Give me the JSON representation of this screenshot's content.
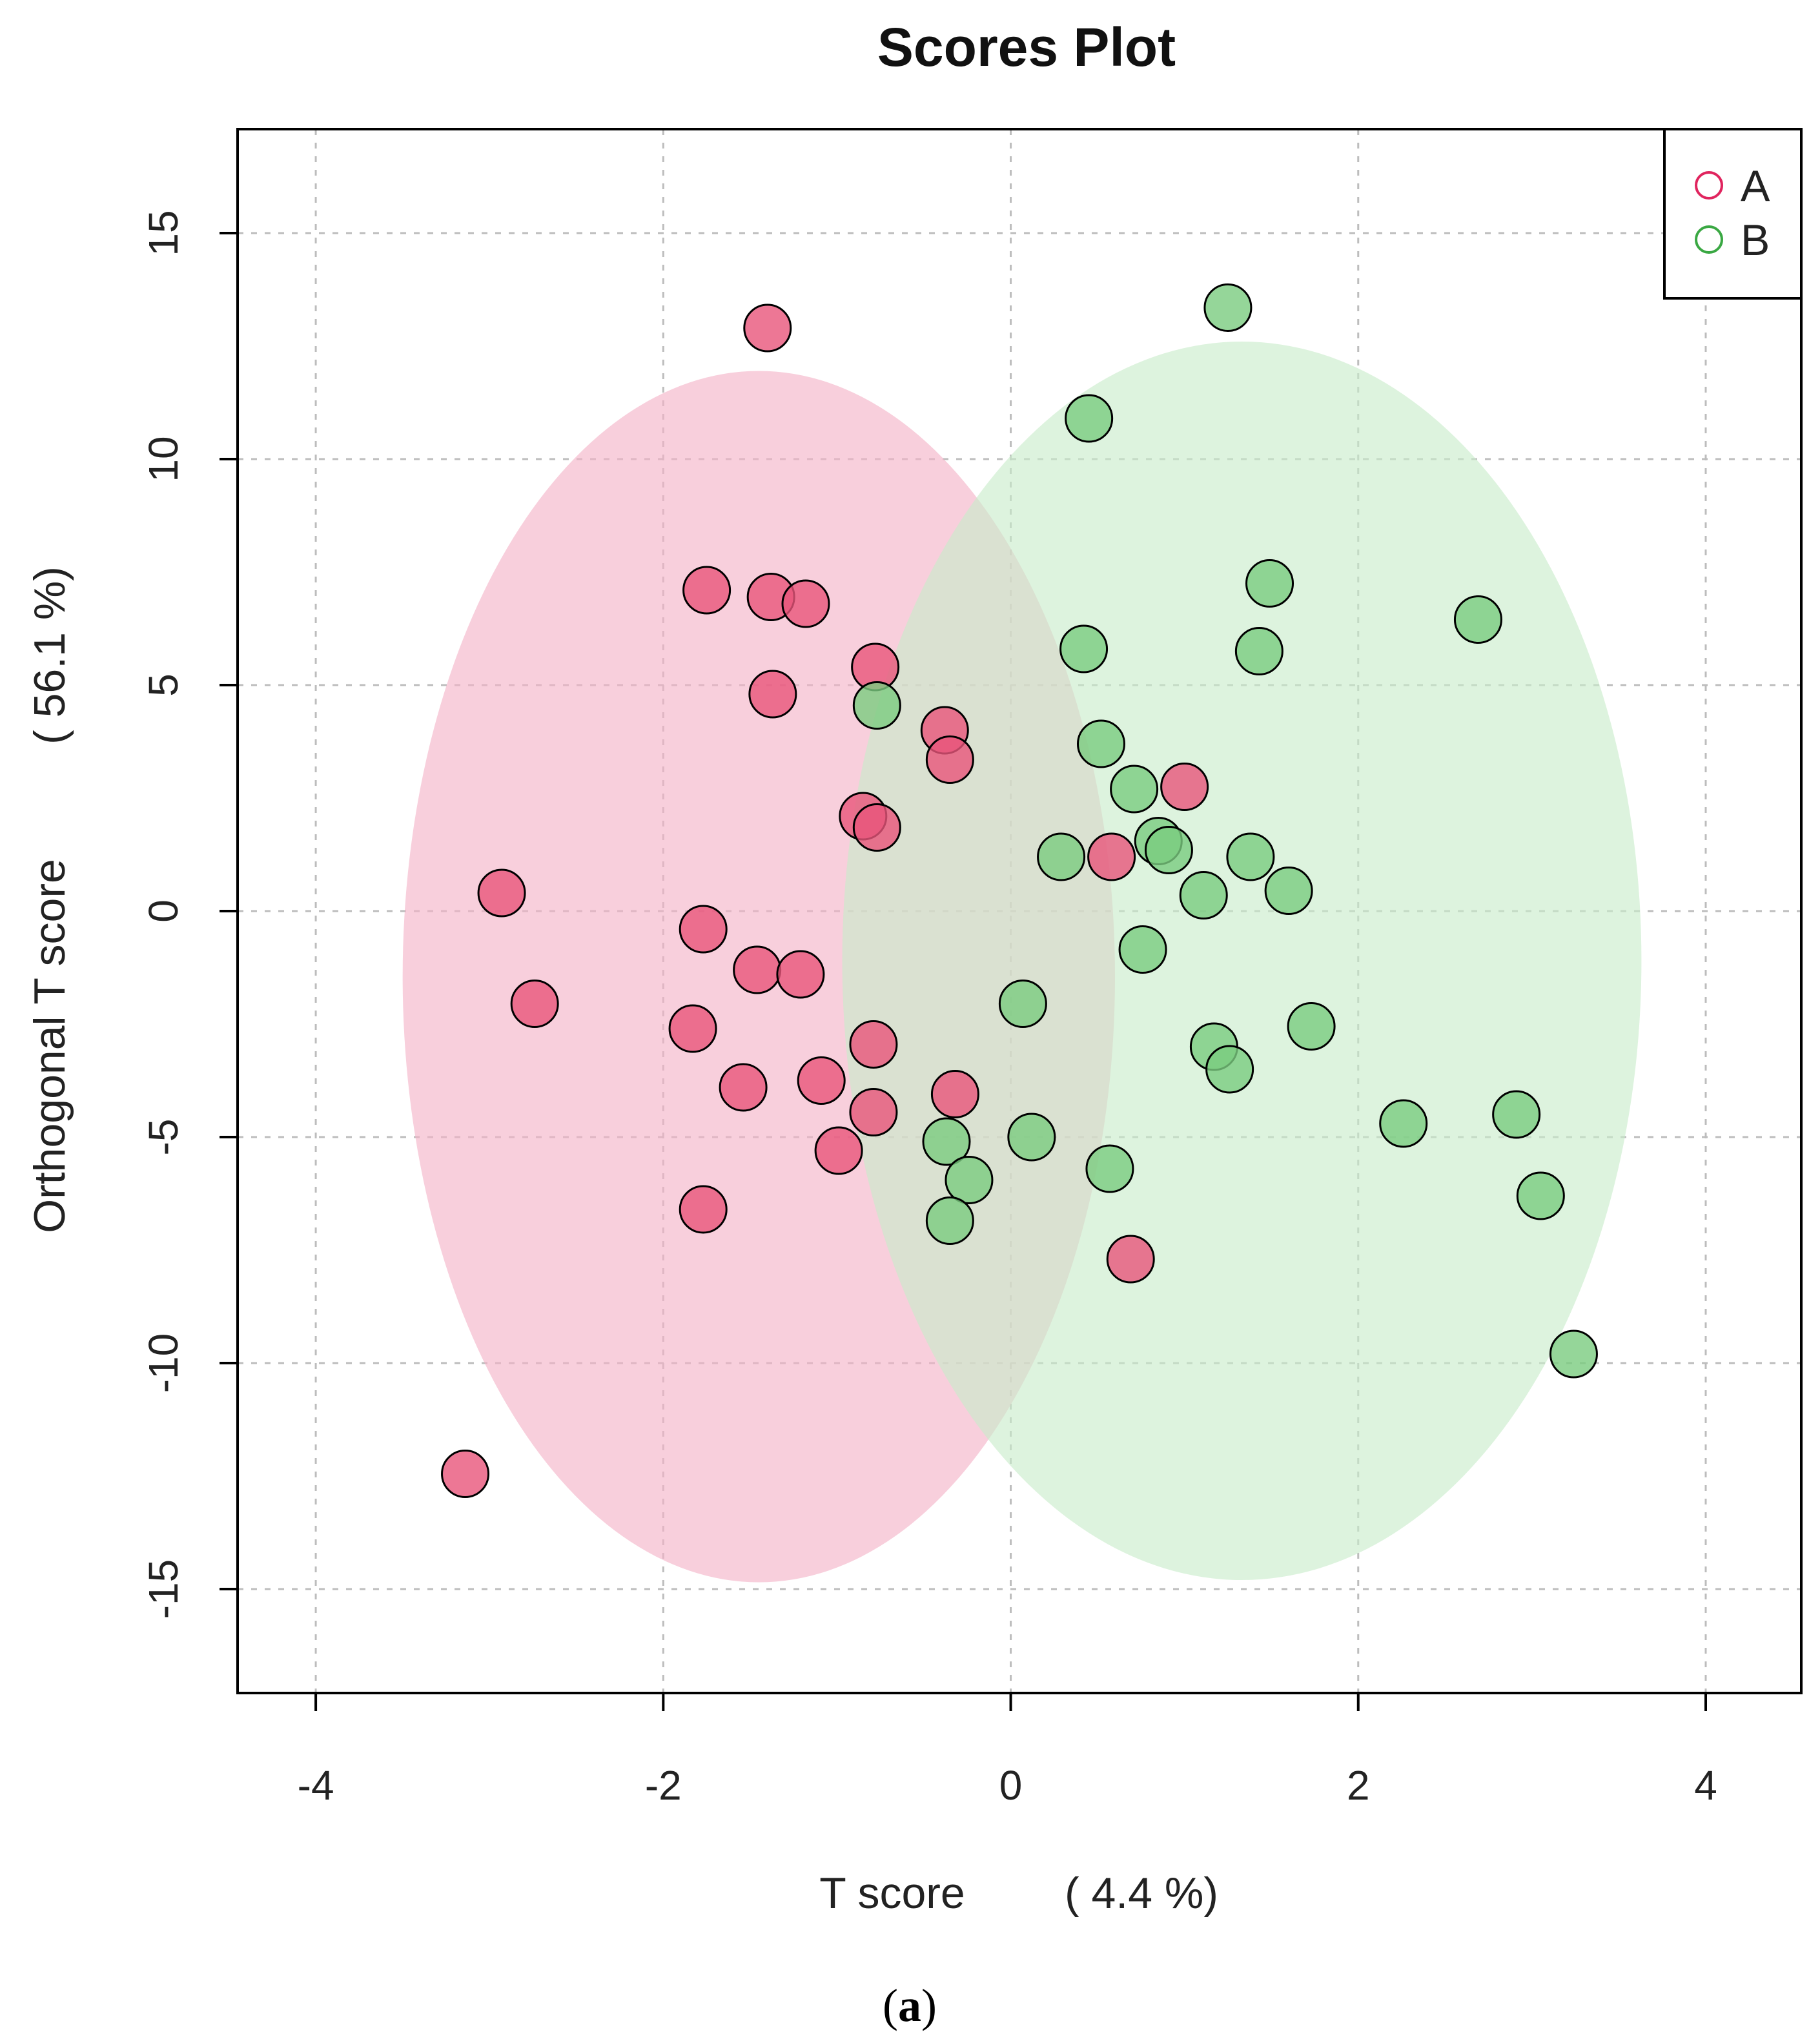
{
  "chart_data": {
    "type": "scatter",
    "title": "Scores Plot",
    "xlabel": "T score",
    "xlabel_pct": "( 4.4 %)",
    "ylabel": "Orthogonal T score",
    "ylabel_pct": "( 56.1 %)",
    "xlim": [
      -4.45,
      4.55
    ],
    "ylim": [
      -17.3,
      17.3
    ],
    "xticks": [
      -4,
      -2,
      0,
      2,
      4
    ],
    "yticks": [
      -15,
      -10,
      -5,
      0,
      5,
      10,
      15
    ],
    "grid": true,
    "legend_position": "top-right",
    "caption_letter": "a",
    "series": [
      {
        "name": "A",
        "color": "#e0245e",
        "fill": "#e8557a",
        "ellipse": {
          "cx": -1.45,
          "cy": -1.45,
          "rx": 2.05,
          "ry": 13.4,
          "fill": "#f4b2c7"
        },
        "points": [
          [
            -1.4,
            12.9
          ],
          [
            -1.75,
            7.1
          ],
          [
            -1.38,
            6.95
          ],
          [
            -1.18,
            6.8
          ],
          [
            -0.78,
            5.4
          ],
          [
            -1.37,
            4.8
          ],
          [
            -0.38,
            4.0
          ],
          [
            -0.35,
            3.35
          ],
          [
            -0.85,
            2.1
          ],
          [
            -0.77,
            1.85
          ],
          [
            1.0,
            2.75
          ],
          [
            0.58,
            1.2
          ],
          [
            -2.93,
            0.4
          ],
          [
            -1.77,
            -0.4
          ],
          [
            -1.46,
            -1.3
          ],
          [
            -1.21,
            -1.4
          ],
          [
            -2.74,
            -2.05
          ],
          [
            -1.83,
            -2.6
          ],
          [
            -0.79,
            -2.95
          ],
          [
            -1.54,
            -3.9
          ],
          [
            -1.09,
            -3.75
          ],
          [
            -0.32,
            -4.05
          ],
          [
            -0.79,
            -4.45
          ],
          [
            -0.99,
            -5.3
          ],
          [
            -1.77,
            -6.6
          ],
          [
            0.69,
            -7.7
          ],
          [
            -3.14,
            -12.45
          ]
        ]
      },
      {
        "name": "B",
        "color": "#3aa843",
        "fill": "#7acc7f",
        "ellipse": {
          "cx": 1.33,
          "cy": -1.1,
          "rx": 2.3,
          "ry": 13.7,
          "fill": "#c8ebc9"
        },
        "points": [
          [
            1.25,
            13.35
          ],
          [
            0.45,
            10.9
          ],
          [
            1.49,
            7.25
          ],
          [
            2.69,
            6.45
          ],
          [
            0.42,
            5.8
          ],
          [
            1.43,
            5.75
          ],
          [
            -0.77,
            4.55
          ],
          [
            0.52,
            3.7
          ],
          [
            0.71,
            2.7
          ],
          [
            0.85,
            1.55
          ],
          [
            0.91,
            1.35
          ],
          [
            0.29,
            1.2
          ],
          [
            1.38,
            1.2
          ],
          [
            1.11,
            0.35
          ],
          [
            1.6,
            0.45
          ],
          [
            0.76,
            -0.85
          ],
          [
            0.07,
            -2.05
          ],
          [
            1.73,
            -2.55
          ],
          [
            1.17,
            -3.0
          ],
          [
            1.26,
            -3.5
          ],
          [
            2.26,
            -4.7
          ],
          [
            2.91,
            -4.5
          ],
          [
            -0.37,
            -5.1
          ],
          [
            0.12,
            -5.0
          ],
          [
            0.57,
            -5.7
          ],
          [
            -0.24,
            -5.95
          ],
          [
            -0.35,
            -6.85
          ],
          [
            3.05,
            -6.3
          ],
          [
            3.24,
            -9.8
          ]
        ]
      }
    ]
  }
}
